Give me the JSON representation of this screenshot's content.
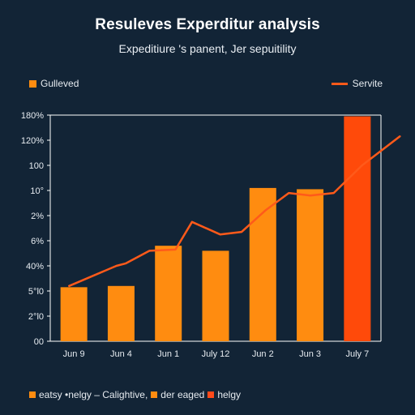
{
  "chart_data": {
    "type": "bar",
    "title": "Resuleves Experditur analysis",
    "subtitle": "Expeditiure 's panent, Jer sepuitility",
    "categories": [
      "Jun 9",
      "Jun 4",
      "Jun 1",
      "July 12",
      "Jun 2",
      "Jun 3",
      "July 7"
    ],
    "y_tick_labels": [
      "00",
      "2°l0",
      "5°l0",
      "40%",
      "6%",
      "2%",
      "10°",
      "100",
      "120%",
      "180%"
    ],
    "ylim": [
      0,
      9
    ],
    "grid": false,
    "series": [
      {
        "name": "Gulleved",
        "type": "bar",
        "values": [
          2.15,
          2.2,
          3.8,
          3.6,
          6.1,
          6.05,
          8.95
        ]
      },
      {
        "name": "Servite",
        "type": "line",
        "x": [
          0.9,
          1.9,
          2.1,
          2.6,
          3.15,
          3.5,
          4.1,
          4.55,
          5.05,
          5.55,
          6.0,
          6.5,
          7.1,
          7.9
        ],
        "values": [
          2.2,
          3.0,
          3.1,
          3.6,
          3.65,
          4.75,
          4.25,
          4.35,
          5.2,
          5.9,
          5.8,
          5.9,
          7.0,
          8.15
        ]
      }
    ],
    "legend": {
      "top_left": "Gulleved",
      "top_right": "Servite"
    },
    "footer_legend": {
      "item1": "eatsy •nelgy – Calightive,",
      "item2": "der eaged",
      "item3": "helgy"
    },
    "colors": {
      "bar": "#ff8c10",
      "bar_highlight": "#ff4a0a",
      "line": "#ff5a1a",
      "axis": "#ffffff",
      "background": "#122436"
    }
  }
}
